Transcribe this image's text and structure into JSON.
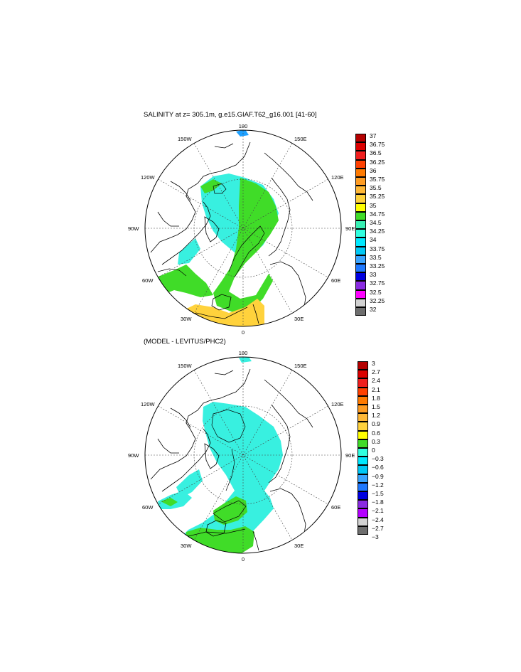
{
  "panel1": {
    "title": "SALINITY at z= 305.1m, g.e15.GIAF.T62_g16.001 [41-60]",
    "colorbar": {
      "labels": [
        "37",
        "36.75",
        "36.5",
        "36.25",
        "36",
        "35.75",
        "35.5",
        "35.25",
        "35",
        "34.75",
        "34.5",
        "34.25",
        "34",
        "33.75",
        "33.5",
        "33.25",
        "33",
        "32.75",
        "32.5",
        "32.25",
        "32"
      ],
      "colors": [
        "#b40000",
        "#dc0000",
        "#f01e1e",
        "#ff4000",
        "#ff7a00",
        "#ff9c22",
        "#ffb837",
        "#ffd23c",
        "#ffff00",
        "#40dc28",
        "#38f0b4",
        "#30ffe0",
        "#00e8ff",
        "#00c8f5",
        "#3aa4ff",
        "#1e78ff",
        "#0000e0",
        "#8a2be2",
        "#ff00ff",
        "#d2d2d2",
        "#6e6e6e"
      ]
    }
  },
  "panel2": {
    "title": "(MODEL - LEVITUS/PHC2)",
    "colorbar": {
      "labels": [
        "3",
        "2.7",
        "2.4",
        "2.1",
        "1.8",
        "1.5",
        "1.2",
        "0.9",
        "0.6",
        "0.3",
        "0",
        "−0.3",
        "−0.6",
        "−0.9",
        "−1.2",
        "−1.5",
        "−1.8",
        "−2.1",
        "−2.4",
        "−2.7",
        "−3"
      ],
      "colors": [
        "#b40000",
        "#dc0000",
        "#f01e1e",
        "#ff4000",
        "#ff7a00",
        "#ff9c22",
        "#ffb837",
        "#ffd23c",
        "#ffff00",
        "#40dc28",
        "#30ffe0",
        "#00e8ff",
        "#00c8f5",
        "#3aa4ff",
        "#1e78ff",
        "#0000e0",
        "#8a2be2",
        "#b400ff",
        "#d2d2d2",
        "#6e6e6e"
      ]
    }
  },
  "map_labels": {
    "top": "180",
    "bottom": "0",
    "left": "90W",
    "right": "90E",
    "upper_left_1": "150W",
    "upper_right_1": "150E",
    "upper_left_2": "120W",
    "upper_right_2": "120E",
    "lower_left_1": "60W",
    "lower_right_1": "60E",
    "lower_left_2": "30W",
    "lower_right_2": "30E"
  },
  "colors": {
    "salinity_blue": "#38f0e0",
    "salinity_green": "#40dc28",
    "salinity_yellow": "#ffd23c",
    "diff_cyan": "#38f0e0",
    "diff_green": "#40dc28"
  }
}
